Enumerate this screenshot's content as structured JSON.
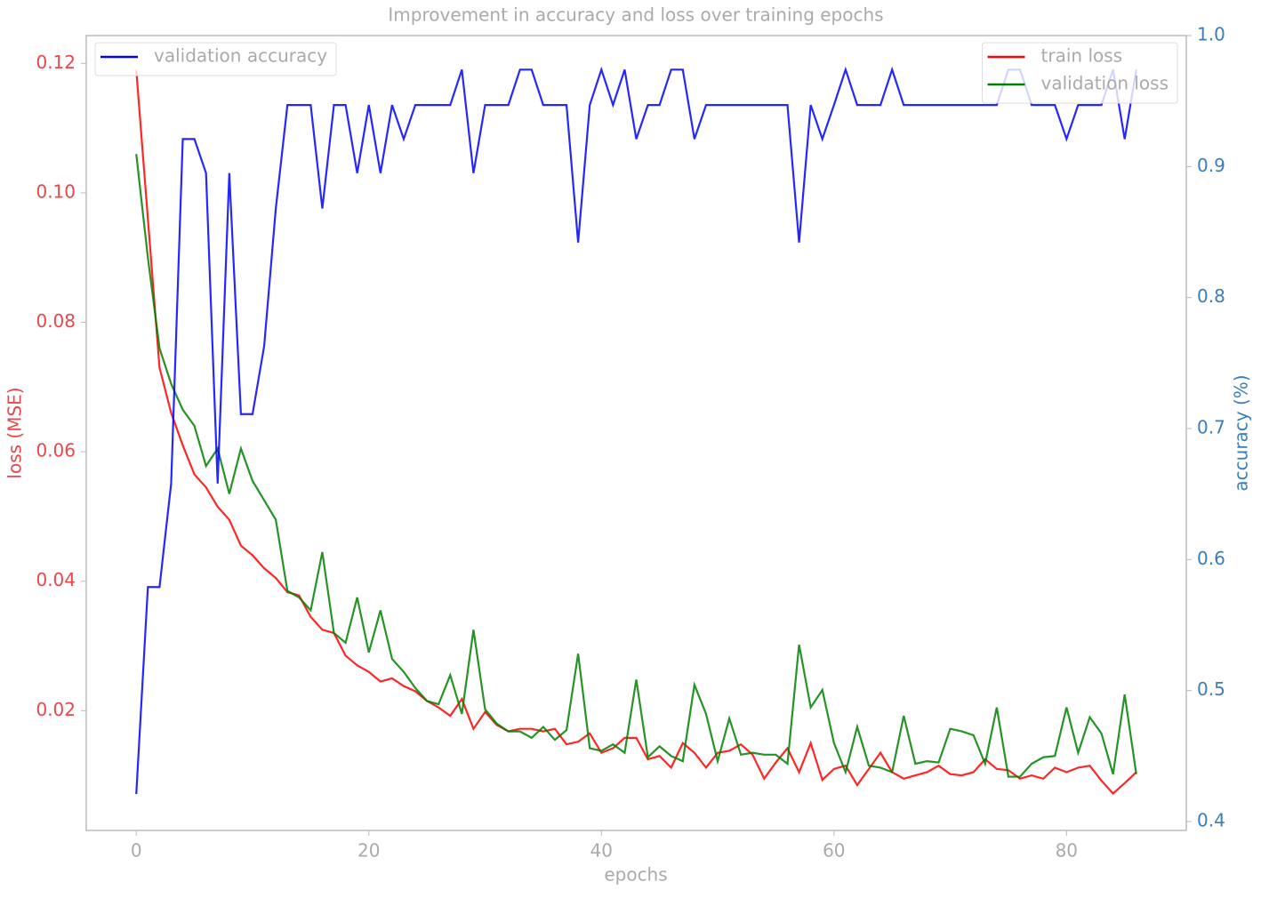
{
  "chart_data": {
    "type": "line",
    "title": "Improvement in accuracy and loss over training epochs",
    "xlabel": "epochs",
    "ylabel": "loss (MSE)",
    "y2label": "accuracy (%)",
    "y_color": "#e8474c",
    "y2_color": "#3b7dbd",
    "x": [
      0,
      1,
      2,
      3,
      4,
      5,
      6,
      7,
      8,
      9,
      10,
      11,
      12,
      13,
      14,
      15,
      16,
      17,
      18,
      19,
      20,
      21,
      22,
      23,
      24,
      25,
      26,
      27,
      28,
      29,
      30,
      31,
      32,
      33,
      34,
      35,
      36,
      37,
      38,
      39,
      40,
      41,
      42,
      43,
      44,
      45,
      46,
      47,
      48,
      49,
      50,
      51,
      52,
      53,
      54,
      55,
      56,
      57,
      58,
      59,
      60,
      61,
      62,
      63,
      64,
      65,
      66,
      67,
      68,
      69,
      70,
      71,
      72,
      73,
      74,
      75,
      76,
      77,
      78,
      79,
      80,
      81,
      82,
      83,
      84,
      85,
      86
    ],
    "xlim": [
      -4.3,
      90.3
    ],
    "xticks": [
      0,
      20,
      40,
      60,
      80
    ],
    "ylim": [
      0.0015,
      0.1243
    ],
    "yticks": [
      0.02,
      0.04,
      0.06,
      0.08,
      {
        "value": 0.1,
        "label": "0.10"
      },
      0.12
    ],
    "y2lim": [
      0.3932,
      1.0
    ],
    "y2ticks": [
      0.4,
      0.5,
      0.6,
      0.7,
      0.8,
      0.9,
      {
        "value": 1.0,
        "label": "1.0"
      }
    ],
    "grid": false,
    "legend": "upper right",
    "y2_legend": "upper left",
    "series": [
      {
        "name": "train loss",
        "color": "#ff0000",
        "values": [
          0.119,
          0.096,
          0.073,
          0.066,
          0.061,
          0.0565,
          0.0545,
          0.0515,
          0.0495,
          0.0455,
          0.044,
          0.042,
          0.0405,
          0.0383,
          0.0378,
          0.0345,
          0.0325,
          0.032,
          0.0285,
          0.027,
          0.026,
          0.0245,
          0.025,
          0.0238,
          0.023,
          0.0215,
          0.0205,
          0.0192,
          0.0218,
          0.0172,
          0.0198,
          0.0178,
          0.0168,
          0.0172,
          0.0172,
          0.0168,
          0.0172,
          0.0148,
          0.0152,
          0.0165,
          0.0135,
          0.0142,
          0.0158,
          0.0158,
          0.0125,
          0.013,
          0.0112,
          0.015,
          0.0135,
          0.0112,
          0.0135,
          0.0138,
          0.0148,
          0.0132,
          0.0095,
          0.012,
          0.0142,
          0.0105,
          0.015,
          0.0093,
          0.011,
          0.0115,
          0.0085,
          0.011,
          0.0135,
          0.0105,
          0.0095,
          0.01,
          0.0105,
          0.0115,
          0.0102,
          0.01,
          0.0105,
          0.0125,
          0.011,
          0.0108,
          0.0095,
          0.01,
          0.0095,
          0.0112,
          0.0105,
          0.0112,
          0.0115,
          0.0092,
          0.0072,
          0.0088,
          0.0105
        ]
      },
      {
        "name": "validation loss",
        "color": "#008000",
        "values": [
          0.106,
          0.09,
          0.076,
          0.0705,
          0.0665,
          0.064,
          0.0578,
          0.0605,
          0.0535,
          0.0605,
          0.0555,
          0.0525,
          0.0495,
          0.0385,
          0.0375,
          0.0355,
          0.0445,
          0.032,
          0.0305,
          0.0375,
          0.029,
          0.0355,
          0.028,
          0.026,
          0.0235,
          0.0215,
          0.021,
          0.0255,
          0.0195,
          0.0325,
          0.0202,
          0.018,
          0.0168,
          0.0168,
          0.0158,
          0.0175,
          0.0155,
          0.017,
          0.0288,
          0.0142,
          0.0138,
          0.0148,
          0.0135,
          0.0248,
          0.0128,
          0.0145,
          0.013,
          0.0122,
          0.024,
          0.0195,
          0.0122,
          0.0188,
          0.0132,
          0.0135,
          0.0132,
          0.0132,
          0.0118,
          0.0302,
          0.0205,
          0.0232,
          0.015,
          0.0105,
          0.0175,
          0.0115,
          0.0112,
          0.0105,
          0.0192,
          0.0118,
          0.0122,
          0.012,
          0.0172,
          0.0168,
          0.0162,
          0.0118,
          0.0205,
          0.0098,
          0.0098,
          0.0118,
          0.0128,
          0.013,
          0.0205,
          0.0135,
          0.019,
          0.0165,
          0.0102,
          0.0225,
          0.0102
        ]
      },
      {
        "name": "validation accuracy",
        "color": "#0000ff",
        "axis": "y2",
        "values": [
          0.421,
          0.579,
          0.579,
          0.658,
          0.921,
          0.921,
          0.895,
          0.658,
          0.895,
          0.711,
          0.711,
          0.763,
          0.868,
          0.947,
          0.947,
          0.947,
          0.868,
          0.947,
          0.947,
          0.895,
          0.947,
          0.895,
          0.947,
          0.921,
          0.947,
          0.947,
          0.947,
          0.947,
          0.974,
          0.895,
          0.947,
          0.947,
          0.947,
          0.974,
          0.974,
          0.947,
          0.947,
          0.947,
          0.842,
          0.947,
          0.974,
          0.947,
          0.974,
          0.921,
          0.947,
          0.947,
          0.974,
          0.974,
          0.921,
          0.947,
          0.947,
          0.947,
          0.947,
          0.947,
          0.947,
          0.947,
          0.947,
          0.842,
          0.947,
          0.921,
          0.947,
          0.974,
          0.947,
          0.947,
          0.947,
          0.974,
          0.947,
          0.947,
          0.947,
          0.947,
          0.947,
          0.947,
          0.947,
          0.947,
          0.947,
          0.974,
          0.974,
          0.947,
          0.947,
          0.947,
          0.921,
          0.947,
          0.947,
          0.947,
          0.974,
          0.921,
          0.974
        ]
      }
    ]
  }
}
